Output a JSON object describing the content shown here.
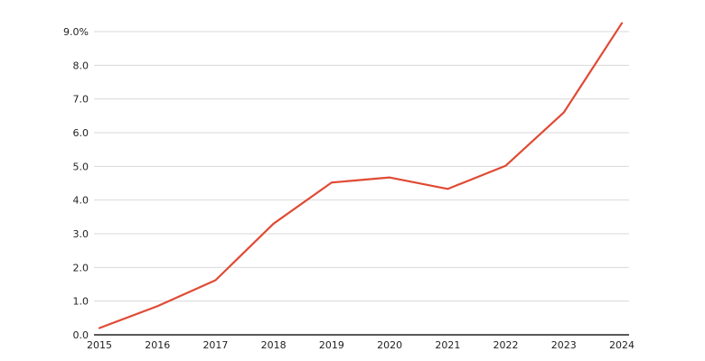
{
  "chart_data": {
    "type": "line",
    "title": "",
    "xlabel": "",
    "ylabel": "",
    "x": [
      "2015",
      "2016",
      "2017",
      "2018",
      "2019",
      "2020",
      "2021",
      "2022",
      "2023",
      "2024"
    ],
    "series": [
      {
        "values": [
          0.2,
          0.85,
          1.62,
          3.3,
          4.52,
          4.67,
          4.33,
          5.02,
          6.6,
          9.25
        ],
        "color": "#e04a34"
      }
    ],
    "ylim": [
      0,
      9
    ],
    "y_ticks": [
      0,
      1,
      2,
      3,
      4,
      5,
      6,
      7,
      8,
      9
    ],
    "y_tick_labels": [
      "0.0",
      "1.0",
      "2.0",
      "3.0",
      "4.0",
      "5.0",
      "6.0",
      "7.0",
      "8.0",
      "9.0%"
    ],
    "grid": true,
    "legend": "none"
  }
}
